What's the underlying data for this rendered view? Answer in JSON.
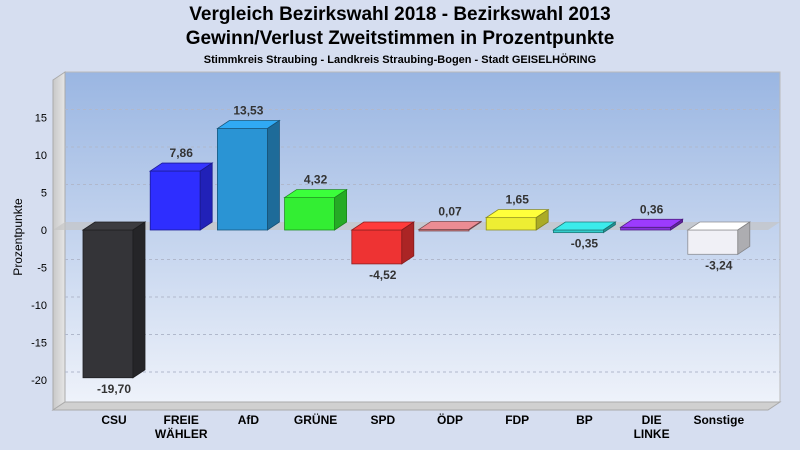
{
  "chart_data": {
    "type": "bar",
    "title": "Vergleich Bezirkswahl 2018 - Bezirkswahl 2013",
    "subtitle": "Gewinn/Verlust Zweitstimmen in Prozentpunkte",
    "subsubtitle": "Stimmkreis Straubing - Landkreis Straubing-Bogen - Stadt GEISELHÖRING",
    "ylabel": "Prozentpunkte",
    "ylim": [
      -25,
      20
    ],
    "yticks": [
      15,
      10,
      5,
      0,
      -5,
      -10,
      -15,
      -20
    ],
    "categories": [
      "CSU",
      "FREIE WÄHLER",
      "AfD",
      "GRÜNE",
      "SPD",
      "ÖDP",
      "FDP",
      "BP",
      "DIE LINKE",
      "Sonstige"
    ],
    "category_lines": [
      [
        "CSU"
      ],
      [
        "FREIE",
        "WÄHLER"
      ],
      [
        "AfD"
      ],
      [
        "GRÜNE"
      ],
      [
        "SPD"
      ],
      [
        "ÖDP"
      ],
      [
        "FDP"
      ],
      [
        "BP"
      ],
      [
        "DIE",
        "LINKE"
      ],
      [
        "Sonstige"
      ]
    ],
    "values": [
      -19.7,
      7.86,
      13.53,
      4.32,
      -4.52,
      0.07,
      1.65,
      -0.35,
      0.36,
      -3.24
    ],
    "value_labels": [
      "-19,70",
      "7,86",
      "13,53",
      "4,32",
      "-4,52",
      "0,07",
      "1,65",
      "-0,35",
      "0,36",
      "-3,24"
    ],
    "colors": [
      "#343438",
      "#2e2eff",
      "#2a94d4",
      "#33ee33",
      "#ee3333",
      "#cc7a80",
      "#eeee33",
      "#33cccc",
      "#8833dd",
      "#f0f0f6"
    ],
    "grid": true
  }
}
